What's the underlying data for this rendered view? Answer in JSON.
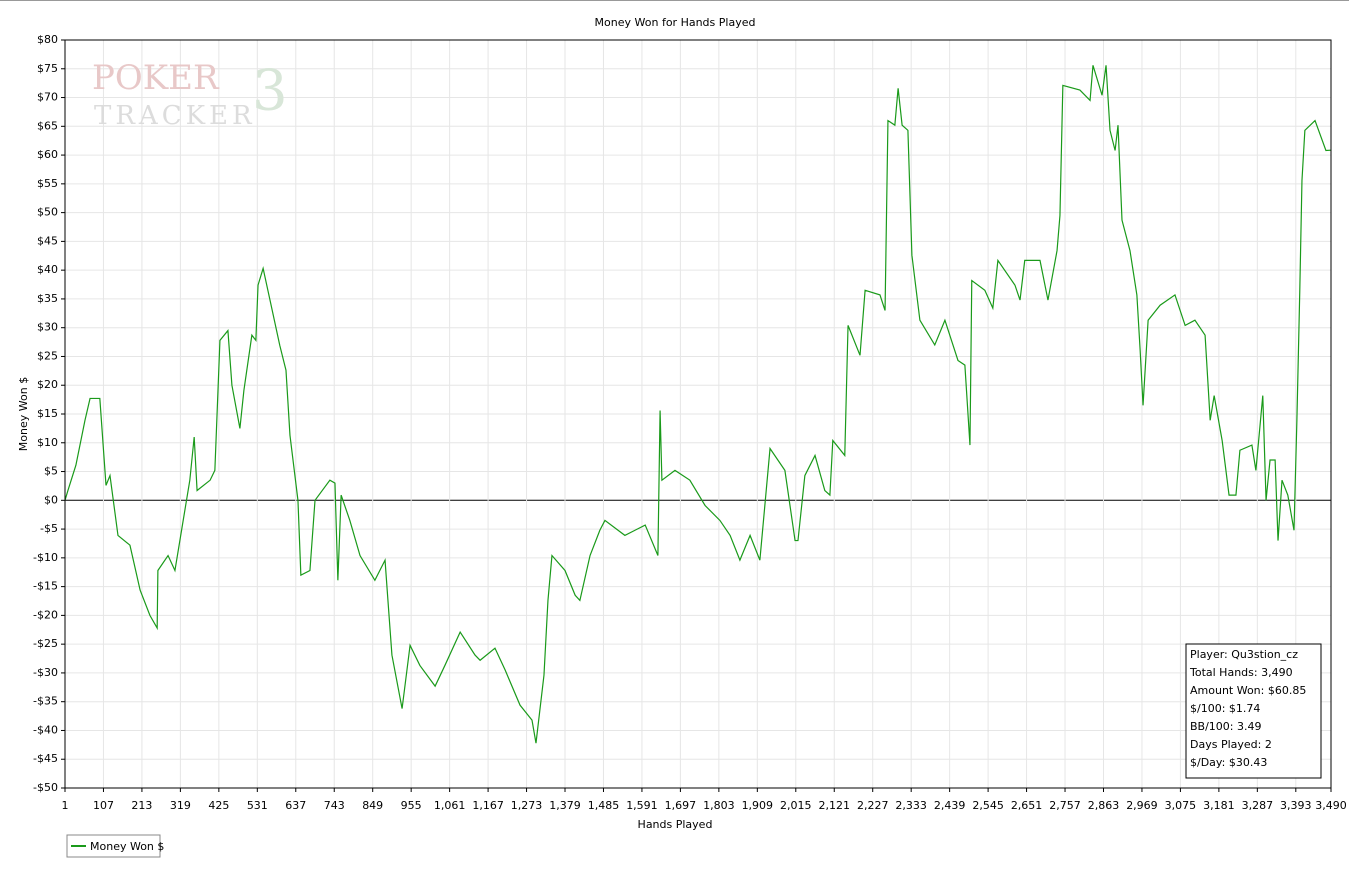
{
  "chart_data": {
    "type": "line",
    "title": "Money Won for Hands Played",
    "xlabel": "Hands Played",
    "ylabel": "Money Won $",
    "watermark": [
      "POKER",
      "TRACKER",
      "3"
    ],
    "grid": true,
    "legend": "bottom-left",
    "xlim": [
      1,
      3490
    ],
    "ylim": [
      -50,
      80
    ],
    "xticks": [
      1,
      107,
      213,
      319,
      425,
      531,
      637,
      743,
      849,
      955,
      {
        "value": 1061,
        "label": "1,061"
      },
      {
        "value": 1167,
        "label": "1,167"
      },
      {
        "value": 1273,
        "label": "1,273"
      },
      {
        "value": 1379,
        "label": "1,379"
      },
      {
        "value": 1485,
        "label": "1,485"
      },
      {
        "value": 1591,
        "label": "1,591"
      },
      {
        "value": 1697,
        "label": "1,697"
      },
      {
        "value": 1803,
        "label": "1,803"
      },
      {
        "value": 1909,
        "label": "1,909"
      },
      {
        "value": 2015,
        "label": "2,015"
      },
      {
        "value": 2121,
        "label": "2,121"
      },
      {
        "value": 2227,
        "label": "2,227"
      },
      {
        "value": 2333,
        "label": "2,333"
      },
      {
        "value": 2439,
        "label": "2,439"
      },
      {
        "value": 2545,
        "label": "2,545"
      },
      {
        "value": 2651,
        "label": "2,651"
      },
      {
        "value": 2757,
        "label": "2,757"
      },
      {
        "value": 2863,
        "label": "2,863"
      },
      {
        "value": 2969,
        "label": "2,969"
      },
      {
        "value": 3075,
        "label": "3,075"
      },
      {
        "value": 3181,
        "label": "3,181"
      },
      {
        "value": 3287,
        "label": "3,287"
      },
      {
        "value": 3393,
        "label": "3,393"
      },
      {
        "value": 3490,
        "label": "3,490"
      }
    ],
    "yticks": [
      {
        "value": 80,
        "label": "$80"
      },
      {
        "value": 75,
        "label": "$75"
      },
      {
        "value": 70,
        "label": "$70"
      },
      {
        "value": 65,
        "label": "$65"
      },
      {
        "value": 60,
        "label": "$60"
      },
      {
        "value": 55,
        "label": "$55"
      },
      {
        "value": 50,
        "label": "$50"
      },
      {
        "value": 45,
        "label": "$45"
      },
      {
        "value": 40,
        "label": "$40"
      },
      {
        "value": 35,
        "label": "$35"
      },
      {
        "value": 30,
        "label": "$30"
      },
      {
        "value": 25,
        "label": "$25"
      },
      {
        "value": 20,
        "label": "$20"
      },
      {
        "value": 15,
        "label": "$15"
      },
      {
        "value": 10,
        "label": "$10"
      },
      {
        "value": 5,
        "label": "$5"
      },
      {
        "value": 0,
        "label": "$0"
      },
      {
        "value": -5,
        "label": "-$5"
      },
      {
        "value": -10,
        "label": "-$10"
      },
      {
        "value": -15,
        "label": "-$15"
      },
      {
        "value": -20,
        "label": "-$20"
      },
      {
        "value": -25,
        "label": "-$25"
      },
      {
        "value": -30,
        "label": "-$30"
      },
      {
        "value": -35,
        "label": "-$35"
      },
      {
        "value": -40,
        "label": "-$40"
      },
      {
        "value": -45,
        "label": "-$45"
      },
      {
        "value": -50,
        "label": "-$50"
      }
    ],
    "x": [
      1,
      9,
      31,
      56,
      70,
      97,
      114,
      125,
      147,
      180,
      208,
      235,
      255,
      257,
      285,
      304,
      345,
      357,
      365,
      401,
      414,
      428,
      450,
      461,
      483,
      494,
      516,
      527,
      533,
      547,
      566,
      593,
      610,
      621,
      643,
      651,
      676,
      690,
      731,
      745,
      753,
      762,
      786,
      814,
      855,
      883,
      891,
      902,
      930,
      952,
      979,
      1021,
      1048,
      1090,
      1131,
      1145,
      1186,
      1214,
      1255,
      1288,
      1299,
      1321,
      1332,
      1343,
      1379,
      1407,
      1420,
      1448,
      1475,
      1489,
      1544,
      1600,
      1635,
      1641,
      1646,
      1682,
      1723,
      1765,
      1806,
      1834,
      1861,
      1889,
      1916,
      1944,
      1985,
      2013,
      2021,
      2040,
      2068,
      2095,
      2109,
      2117,
      2150,
      2159,
      2192,
      2206,
      2247,
      2261,
      2269,
      2288,
      2297,
      2308,
      2324,
      2335,
      2357,
      2398,
      2426,
      2462,
      2481,
      2495,
      2500,
      2536,
      2558,
      2572,
      2619,
      2633,
      2646,
      2688,
      2710,
      2735,
      2743,
      2751,
      2798,
      2826,
      2834,
      2859,
      2870,
      2881,
      2895,
      2903,
      2914,
      2936,
      2955,
      2964,
      2972,
      2986,
      3019,
      3060,
      3088,
      3115,
      3143,
      3157,
      3168,
      3190,
      3209,
      3228,
      3239,
      3272,
      3283,
      3302,
      3311,
      3322,
      3336,
      3344,
      3355,
      3371,
      3388,
      3396,
      3404,
      3410,
      3418,
      3446,
      3476,
      3490
    ],
    "series": [
      {
        "name": "Money Won $",
        "color": "#1a9a1a",
        "values": [
          0,
          1.7,
          6.1,
          13.9,
          17.7,
          17.7,
          2.6,
          4.3,
          -6.1,
          -7.8,
          -15.6,
          -20,
          -22.2,
          -12.2,
          -9.6,
          -12.2,
          3.5,
          11,
          1.7,
          3.5,
          5.2,
          27.8,
          29.5,
          20,
          12.5,
          19.1,
          28.7,
          27.8,
          37.4,
          40.3,
          34.8,
          26.9,
          22.6,
          11.3,
          0,
          -13,
          -12.2,
          0,
          3.5,
          3,
          -13.9,
          0.9,
          -3.5,
          -9.6,
          -13.9,
          -10.4,
          -17.4,
          -26.9,
          -36.2,
          -25.2,
          -28.7,
          -32.3,
          -28.7,
          -22.9,
          -26.9,
          -27.8,
          -25.7,
          -29.5,
          -35.6,
          -38.2,
          -42.2,
          -30.4,
          -17.4,
          -9.6,
          -12.2,
          -16.5,
          -17.4,
          -9.6,
          -5.2,
          -3.5,
          -6.1,
          -4.3,
          -9.6,
          15.6,
          3.5,
          5.2,
          3.5,
          -0.9,
          -3.5,
          -6.1,
          -10.4,
          -6.1,
          -10.4,
          9,
          5.2,
          -7,
          -7,
          4.3,
          7.8,
          1.7,
          0.9,
          10.4,
          7.8,
          30.4,
          25.2,
          36.5,
          35.7,
          33,
          66,
          65.2,
          71.6,
          65.2,
          64.3,
          42.6,
          31.3,
          27,
          31.3,
          24.3,
          23.5,
          9.6,
          38.2,
          36.5,
          33.4,
          41.7,
          37.4,
          34.8,
          41.7,
          41.7,
          34.8,
          43.4,
          49.5,
          72.1,
          71.3,
          69.5,
          75.6,
          70.4,
          75.6,
          64.3,
          60.8,
          65.2,
          48.7,
          43.4,
          35.7,
          26.1,
          16.5,
          31.3,
          33.9,
          35.7,
          30.4,
          31.3,
          28.7,
          13.9,
          18.2,
          10.4,
          0.9,
          0.9,
          8.7,
          9.6,
          5.2,
          18.2,
          0,
          7,
          7,
          -7,
          3.5,
          0.9,
          -5.2,
          13.9,
          36.5,
          55.6,
          64.3,
          66,
          60.8,
          60.85
        ]
      }
    ],
    "stats": [
      "Player: Qu3stion_cz",
      "Total Hands: 3,490",
      "Amount Won: $60.85",
      "$/100: $1.74",
      "BB/100: 3.49",
      "Days Played: 2",
      "$/Day: $30.43"
    ]
  }
}
